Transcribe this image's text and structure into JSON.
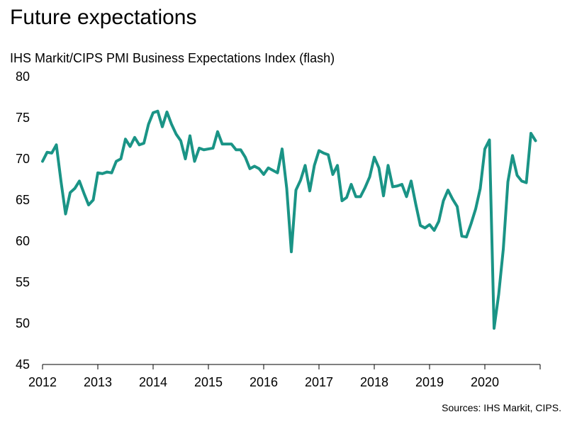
{
  "title": "Future expectations",
  "subtitle": "IHS Markit/CIPS PMI Business Expectations Index (flash)",
  "source": "Sources: IHS Markit,  CIPS.",
  "colors": {
    "series": "#1a9486",
    "axis": "#000000"
  },
  "chart_data": {
    "type": "line",
    "title": "Future expectations",
    "ylabel": "IHS Markit/CIPS PMI Business Expectations Index (flash)",
    "ylim": [
      45,
      80
    ],
    "yticks": [
      45,
      50,
      55,
      60,
      65,
      70,
      75,
      80
    ],
    "xlim": [
      2012,
      2021
    ],
    "xticks": [
      2012,
      2013,
      2014,
      2015,
      2016,
      2017,
      2018,
      2019,
      2020
    ],
    "grid": false,
    "legend": "none",
    "series": [
      {
        "x_start": 2012,
        "frequency": "monthly",
        "values": [
          69.7,
          70.8,
          70.7,
          71.7,
          67.3,
          63.3,
          65.9,
          66.4,
          67.3,
          65.8,
          64.4,
          65.0,
          68.3,
          68.2,
          68.4,
          68.3,
          69.7,
          70.0,
          72.4,
          71.5,
          72.6,
          71.7,
          71.9,
          74.2,
          75.6,
          75.8,
          73.9,
          75.7,
          74.2,
          73.0,
          72.2,
          70.0,
          72.8,
          69.7,
          71.3,
          71.1,
          71.2,
          71.3,
          73.3,
          71.8,
          71.8,
          71.8,
          71.1,
          71.1,
          70.2,
          68.8,
          69.1,
          68.8,
          68.1,
          68.9,
          68.6,
          68.3,
          71.2,
          66.4,
          58.7,
          66.2,
          67.4,
          69.2,
          66.1,
          69.2,
          71.0,
          70.7,
          70.5,
          68.1,
          69.2,
          64.9,
          65.3,
          66.9,
          65.4,
          65.4,
          66.5,
          67.8,
          70.2,
          68.9,
          65.5,
          69.2,
          66.6,
          66.7,
          66.9,
          65.4,
          67.3,
          64.5,
          61.9,
          61.6,
          62.0,
          61.3,
          62.4,
          64.9,
          66.2,
          65.1,
          64.2,
          60.6,
          60.5,
          62.1,
          63.9,
          66.4,
          71.2,
          72.3,
          49.4,
          53.5,
          59.0,
          67.2,
          70.4,
          68.0,
          67.3,
          67.1,
          73.1,
          72.2
        ]
      }
    ]
  }
}
